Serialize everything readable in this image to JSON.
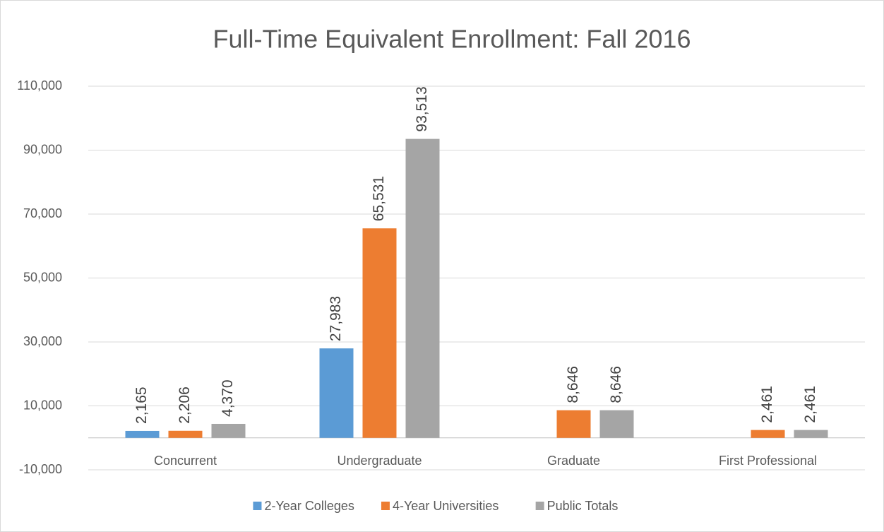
{
  "chart_data": {
    "type": "bar",
    "title": "Full-Time Equivalent Enrollment: Fall 2016",
    "categories": [
      "Concurrent",
      "Undergraduate",
      "Graduate",
      "First Professional"
    ],
    "series": [
      {
        "name": "2-Year Colleges",
        "color": "#5b9bd5",
        "values": [
          2165,
          27983,
          null,
          null
        ],
        "value_labels": [
          "2,165",
          "27,983",
          null,
          null
        ]
      },
      {
        "name": "4-Year Universities",
        "color": "#ed7d31",
        "values": [
          2206,
          65531,
          8646,
          2461
        ],
        "value_labels": [
          "2,206",
          "65,531",
          "8,646",
          "2,461"
        ]
      },
      {
        "name": "Public Totals",
        "color": "#a5a5a5",
        "values": [
          4370,
          93513,
          8646,
          2461
        ],
        "value_labels": [
          "4,370",
          "93,513",
          "8,646",
          "2,461"
        ]
      }
    ],
    "ylim": [
      -10000,
      110000
    ],
    "yticks": [
      {
        "value": -10000,
        "label": "-10,000"
      },
      {
        "value": 10000,
        "label": "10,000"
      },
      {
        "value": 30000,
        "label": "30,000"
      },
      {
        "value": 50000,
        "label": "50,000"
      },
      {
        "value": 70000,
        "label": "70,000"
      },
      {
        "value": 90000,
        "label": "90,000"
      },
      {
        "value": 110000,
        "label": "110,000"
      }
    ],
    "grid": true,
    "legend": "bottom"
  }
}
